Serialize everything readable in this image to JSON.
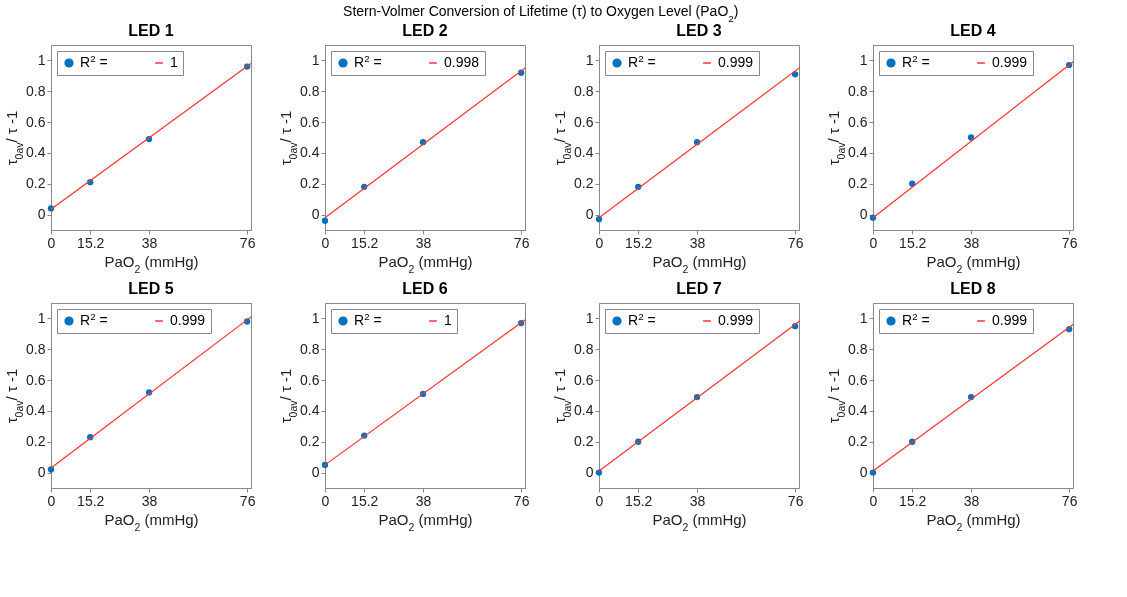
{
  "chart_data": [
    {
      "type": "scatter",
      "title": "LED 1",
      "annotations": [
        "Stern-Volmer Conversion of Lifetime (τ) to Oxygen Level (PaO$_{2}$)"
      ],
      "xlabel": "PaO$_{2}$ (mmHg)",
      "ylabel": "τ$_{0av}$/ τ -1",
      "xlim": [
        0,
        77.5
      ],
      "ylim": [
        -0.1,
        1.1
      ],
      "xticks": [
        0,
        15.2,
        38,
        76
      ],
      "yticks": [
        0,
        0.2,
        0.4,
        0.6,
        0.8,
        1
      ],
      "grid": false,
      "legend": "top left",
      "series": [
        {
          "name": "R$^{2}$ =",
          "type": "scatter",
          "marker": "circle",
          "color": "#0072bd",
          "x": [
            0,
            15.2,
            38,
            76
          ],
          "values": [
            0.04,
            0.21,
            0.49,
            0.96
          ]
        },
        {
          "name": "1",
          "type": "line",
          "color": "#ff3030",
          "x": [
            0,
            77.5
          ],
          "values": [
            0.035,
            0.98
          ]
        }
      ]
    },
    {
      "type": "scatter",
      "title": "LED 2",
      "xlabel": "PaO$_{2}$ (mmHg)",
      "ylabel": "τ$_{0av}$/ τ -1",
      "xlim": [
        0,
        77.5
      ],
      "ylim": [
        -0.1,
        1.1
      ],
      "xticks": [
        0,
        15.2,
        38,
        76
      ],
      "yticks": [
        0,
        0.2,
        0.4,
        0.6,
        0.8,
        1
      ],
      "grid": false,
      "legend": "top left",
      "series": [
        {
          "name": "R$^{2}$ =",
          "type": "scatter",
          "marker": "circle",
          "color": "#0072bd",
          "x": [
            0,
            15.2,
            38,
            76
          ],
          "values": [
            -0.04,
            0.18,
            0.47,
            0.92
          ]
        },
        {
          "name": "0.998",
          "type": "line",
          "color": "#ff3030",
          "x": [
            0,
            77.5
          ],
          "values": [
            -0.02,
            0.95
          ]
        }
      ]
    },
    {
      "type": "scatter",
      "title": "LED 3",
      "xlabel": "PaO$_{2}$ (mmHg)",
      "ylabel": "τ$_{0av}$/ τ -1",
      "xlim": [
        0,
        77.5
      ],
      "ylim": [
        -0.1,
        1.1
      ],
      "xticks": [
        0,
        15.2,
        38,
        76
      ],
      "yticks": [
        0,
        0.2,
        0.4,
        0.6,
        0.8,
        1
      ],
      "grid": false,
      "legend": "top left",
      "series": [
        {
          "name": "R$^{2}$ =",
          "type": "scatter",
          "marker": "circle",
          "color": "#0072bd",
          "x": [
            0,
            15.2,
            38,
            76
          ],
          "values": [
            -0.03,
            0.18,
            0.47,
            0.91
          ]
        },
        {
          "name": "0.999",
          "type": "line",
          "color": "#ff3030",
          "x": [
            0,
            77.5
          ],
          "values": [
            -0.02,
            0.95
          ]
        }
      ]
    },
    {
      "type": "scatter",
      "title": "LED 4",
      "xlabel": "PaO$_{2}$ (mmHg)",
      "ylabel": "τ$_{0av}$/ τ -1",
      "xlim": [
        0,
        77.5
      ],
      "ylim": [
        -0.1,
        1.1
      ],
      "xticks": [
        0,
        15.2,
        38,
        76
      ],
      "yticks": [
        0,
        0.2,
        0.4,
        0.6,
        0.8,
        1
      ],
      "grid": false,
      "legend": "top left",
      "series": [
        {
          "name": "R$^{2}$ =",
          "type": "scatter",
          "marker": "circle",
          "color": "#0072bd",
          "x": [
            0,
            15.2,
            38,
            76
          ],
          "values": [
            -0.02,
            0.2,
            0.5,
            0.97
          ]
        },
        {
          "name": "0.999",
          "type": "line",
          "color": "#ff3030",
          "x": [
            0,
            77.5
          ],
          "values": [
            -0.02,
            0.99
          ]
        }
      ]
    },
    {
      "type": "scatter",
      "title": "LED 5",
      "xlabel": "PaO$_{2}$ (mmHg)",
      "ylabel": "τ$_{0av}$/ τ -1",
      "xlim": [
        0,
        77.5
      ],
      "ylim": [
        -0.1,
        1.1
      ],
      "xticks": [
        0,
        15.2,
        38,
        76
      ],
      "yticks": [
        0,
        0.2,
        0.4,
        0.6,
        0.8,
        1
      ],
      "grid": false,
      "legend": "top left",
      "series": [
        {
          "name": "R$^{2}$ =",
          "type": "scatter",
          "marker": "circle",
          "color": "#0072bd",
          "x": [
            0,
            15.2,
            38,
            76
          ],
          "values": [
            0.02,
            0.23,
            0.52,
            0.98
          ]
        },
        {
          "name": "0.999",
          "type": "line",
          "color": "#ff3030",
          "x": [
            0,
            77.5
          ],
          "values": [
            0.03,
            1.01
          ]
        }
      ]
    },
    {
      "type": "scatter",
      "title": "LED 6",
      "xlabel": "PaO$_{2}$ (mmHg)",
      "ylabel": "τ$_{0av}$/ τ -1",
      "xlim": [
        0,
        77.5
      ],
      "ylim": [
        -0.1,
        1.1
      ],
      "xticks": [
        0,
        15.2,
        38,
        76
      ],
      "yticks": [
        0,
        0.2,
        0.4,
        0.6,
        0.8,
        1
      ],
      "grid": false,
      "legend": "top left",
      "series": [
        {
          "name": "R$^{2}$ =",
          "type": "scatter",
          "marker": "circle",
          "color": "#0072bd",
          "x": [
            0,
            15.2,
            38,
            76
          ],
          "values": [
            0.05,
            0.24,
            0.51,
            0.97
          ]
        },
        {
          "name": "1",
          "type": "line",
          "color": "#ff3030",
          "x": [
            0,
            77.5
          ],
          "values": [
            0.05,
            0.99
          ]
        }
      ]
    },
    {
      "type": "scatter",
      "title": "LED 7",
      "xlabel": "PaO$_{2}$ (mmHg)",
      "ylabel": "τ$_{0av}$/ τ -1",
      "xlim": [
        0,
        77.5
      ],
      "ylim": [
        -0.1,
        1.1
      ],
      "xticks": [
        0,
        15.2,
        38,
        76
      ],
      "yticks": [
        0,
        0.2,
        0.4,
        0.6,
        0.8,
        1
      ],
      "grid": false,
      "legend": "top left",
      "series": [
        {
          "name": "R$^{2}$ =",
          "type": "scatter",
          "marker": "circle",
          "color": "#0072bd",
          "x": [
            0,
            15.2,
            38,
            76
          ],
          "values": [
            0,
            0.2,
            0.49,
            0.95
          ]
        },
        {
          "name": "0.999",
          "type": "line",
          "color": "#ff3030",
          "x": [
            0,
            77.5
          ],
          "values": [
            0.01,
            0.98
          ]
        }
      ]
    },
    {
      "type": "scatter",
      "title": "LED 8",
      "xlabel": "PaO$_{2}$ (mmHg)",
      "ylabel": "τ$_{0av}$/ τ -1",
      "xlim": [
        0,
        77.5
      ],
      "ylim": [
        -0.1,
        1.1
      ],
      "xticks": [
        0,
        15.2,
        38,
        76
      ],
      "yticks": [
        0,
        0.2,
        0.4,
        0.6,
        0.8,
        1
      ],
      "grid": false,
      "legend": "top left",
      "series": [
        {
          "name": "R$^{2}$ =",
          "type": "scatter",
          "marker": "circle",
          "color": "#0072bd",
          "x": [
            0,
            15.2,
            38,
            76
          ],
          "values": [
            0,
            0.2,
            0.49,
            0.93
          ]
        },
        {
          "name": "0.999",
          "type": "line",
          "color": "#ff3030",
          "x": [
            0,
            77.5
          ],
          "values": [
            0.01,
            0.96
          ]
        }
      ]
    }
  ]
}
